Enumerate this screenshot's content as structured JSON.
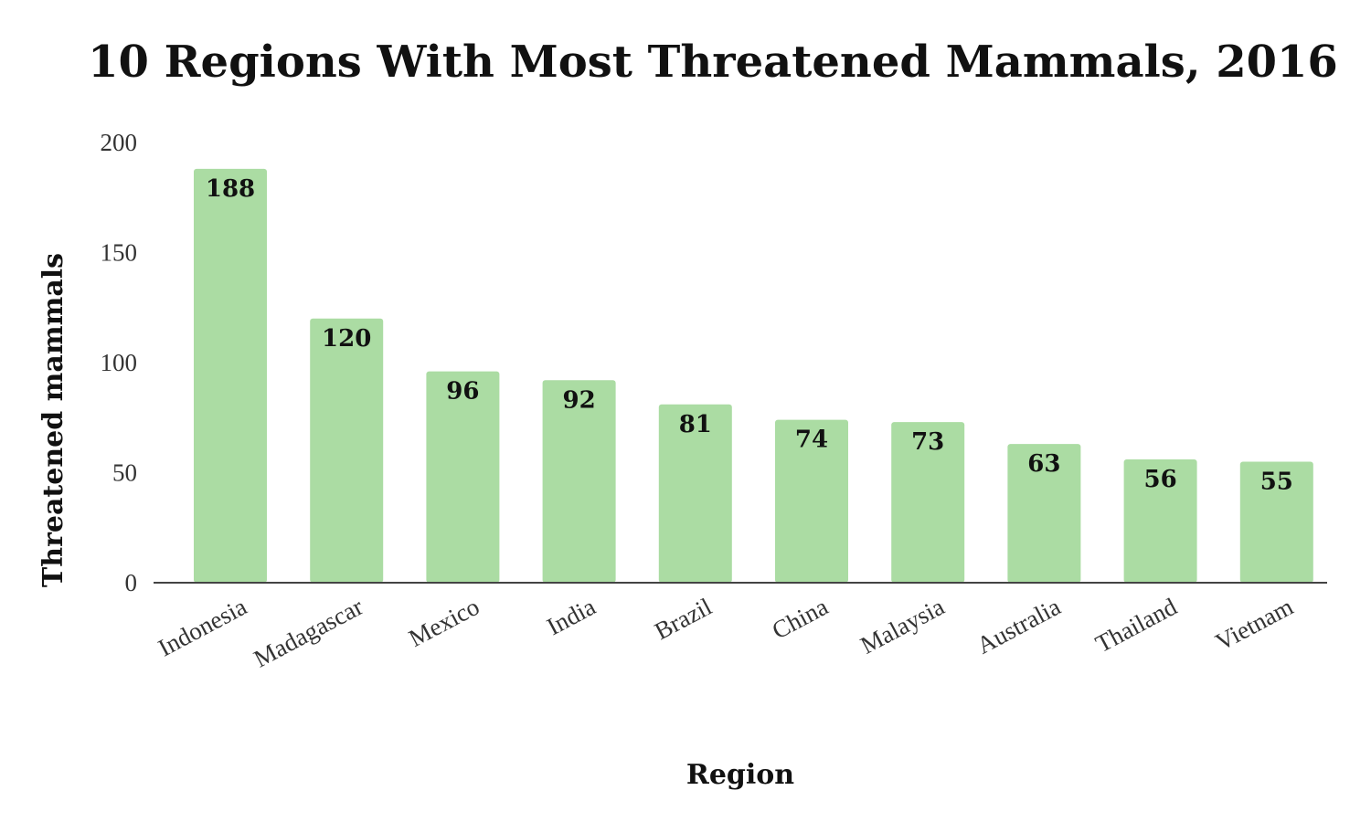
{
  "chart_data": {
    "type": "bar",
    "title": "10 Regions With Most Threatened Mammals, 2016",
    "xlabel": "Region",
    "ylabel": "Threatened mammals",
    "categories": [
      "Indonesia",
      "Madagascar",
      "Mexico",
      "India",
      "Brazil",
      "China",
      "Malaysia",
      "Australia",
      "Thailand",
      "Vietnam"
    ],
    "values": [
      188,
      120,
      96,
      92,
      81,
      74,
      73,
      63,
      56,
      55
    ],
    "data_labels": [
      "188",
      "120",
      "96",
      "92",
      "81",
      "74",
      "73",
      "63",
      "56",
      "55"
    ],
    "ylim": [
      0,
      200
    ],
    "yticks": [
      0,
      50,
      100,
      150,
      200
    ],
    "ytick_labels": [
      "0",
      "50",
      "100",
      "150",
      "200"
    ],
    "grid": false,
    "legend": "none",
    "bar_color": "#abdca3"
  }
}
